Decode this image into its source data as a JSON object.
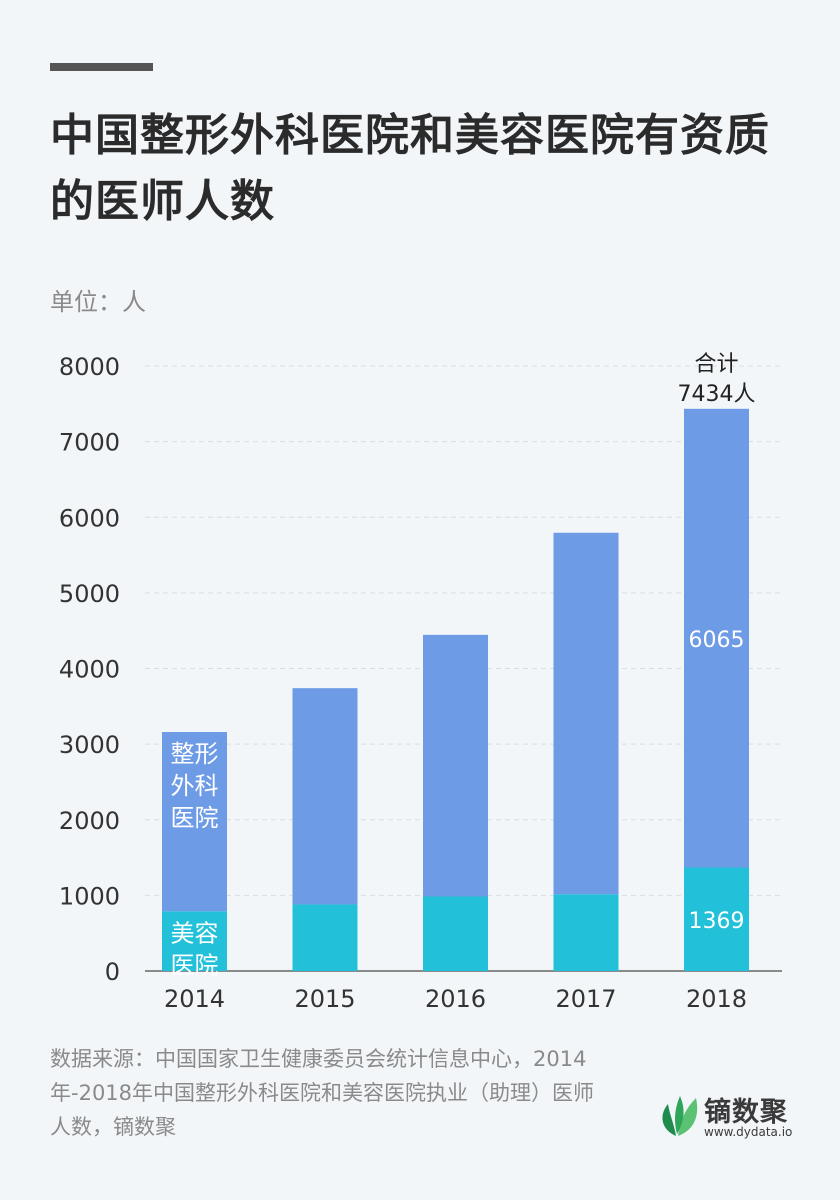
{
  "header": {
    "title": "中国整形外科医院和美容医院有资质的医师人数",
    "unit": "单位：人"
  },
  "colors": {
    "plastic": "#6d9be5",
    "cosmetic": "#22c1d9",
    "axis_text": "#333333",
    "grid": "#d8dee6"
  },
  "chart_data": {
    "type": "bar",
    "stacked": true,
    "categories": [
      "2014",
      "2015",
      "2016",
      "2017",
      "2018"
    ],
    "series": [
      {
        "name": "美容医院",
        "values": [
          790,
          880,
          985,
          1015,
          1369
        ]
      },
      {
        "name": "整形外科医院",
        "values": [
          2370,
          2860,
          3460,
          4780,
          6065
        ]
      }
    ],
    "series_labels": {
      "plastic": [
        "整形",
        "外科",
        "医院"
      ],
      "cosmetic": [
        "美容",
        "医院"
      ]
    },
    "data_labels": {
      "cosmetic_2018": "1369",
      "plastic_2018": "6065"
    },
    "total_label": {
      "line1": "合计",
      "line2": "7434人"
    },
    "yticks": [
      "0",
      "1000",
      "2000",
      "3000",
      "4000",
      "5000",
      "6000",
      "7000",
      "8000"
    ],
    "ylim": [
      0,
      8000
    ],
    "grid": true
  },
  "footer": {
    "source": "数据来源：中国国家卫生健康委员会统计信息中心，2014年-2018年中国整形外科医院和美容医院执业（助理）医师人数，镝数聚"
  },
  "logo": {
    "name": "镝数聚",
    "url": "www.dydata.io"
  }
}
